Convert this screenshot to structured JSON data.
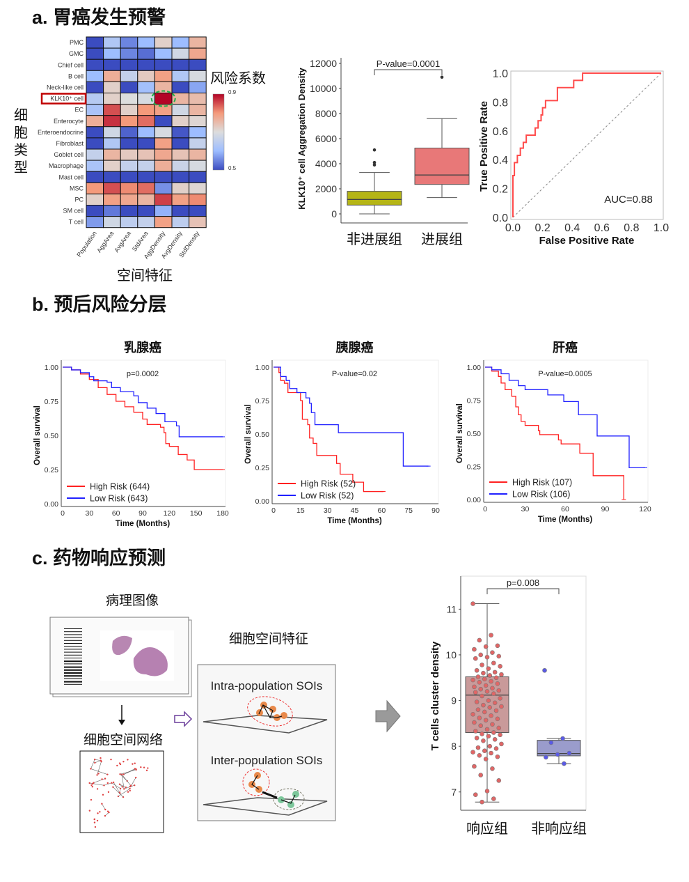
{
  "panel_a": {
    "title": "a. 胃癌发生预警",
    "heatmap_ylabel_chars": [
      "细",
      "胞",
      "类",
      "型"
    ],
    "heatmap_xlabel": "空间特征",
    "colorbar_title": "风险系数",
    "highlight_row_label": "KLK10⁺ cell",
    "highlight_color": "#c00000",
    "highlight_circle_color": "#22b14c"
  },
  "panel_b": {
    "title": "b. 预后风险分层"
  },
  "panel_c": {
    "title": "c. 药物响应预测",
    "pathology_label": "病理图像",
    "network_label": "细胞空间网络",
    "features_label": "细胞空间特征",
    "intra_label": "Intra-population SOIs",
    "inter_label": "Inter-population SOIs"
  },
  "chart_data": [
    {
      "type": "heatmap",
      "rows": [
        "PMC",
        "GMC",
        "Chief cell",
        "B cell",
        "Neck-like cell",
        "KLK10⁺ cell",
        "EC",
        "Enterocyte",
        "Enteroendocrine",
        "Fibroblast",
        "Goblet cell",
        "Macrophage",
        "Mast cell",
        "MSC",
        "PC",
        "SM cell",
        "T cell"
      ],
      "columns": [
        "Population",
        "AggArea",
        "AvgArea",
        "StdArea",
        "AggDensity",
        "AvgDensity",
        "StdDensity"
      ],
      "values": [
        [
          0.5,
          0.63,
          0.55,
          0.6,
          0.72,
          0.6,
          0.76
        ],
        [
          0.5,
          0.6,
          0.55,
          0.53,
          0.6,
          0.68,
          0.78
        ],
        [
          0.5,
          0.5,
          0.5,
          0.5,
          0.5,
          0.5,
          0.5
        ],
        [
          0.6,
          0.77,
          0.66,
          0.73,
          0.79,
          0.63,
          0.69
        ],
        [
          0.5,
          0.72,
          0.5,
          0.61,
          0.76,
          0.5,
          0.58
        ],
        [
          0.64,
          0.72,
          0.7,
          0.69,
          0.9,
          0.76,
          0.75
        ],
        [
          0.62,
          0.85,
          0.72,
          0.8,
          0.79,
          0.68,
          0.76
        ],
        [
          0.77,
          0.87,
          0.8,
          0.83,
          0.5,
          0.72,
          0.71
        ],
        [
          0.5,
          0.68,
          0.52,
          0.6,
          0.69,
          0.51,
          0.6
        ],
        [
          0.5,
          0.63,
          0.5,
          0.5,
          0.79,
          0.5,
          0.66
        ],
        [
          0.66,
          0.76,
          0.73,
          0.74,
          0.78,
          0.74,
          0.76
        ],
        [
          0.62,
          0.72,
          0.66,
          0.66,
          0.77,
          0.67,
          0.69
        ],
        [
          0.5,
          0.5,
          0.5,
          0.5,
          0.5,
          0.5,
          0.5
        ],
        [
          0.8,
          0.85,
          0.81,
          0.83,
          0.56,
          0.72,
          0.71
        ],
        [
          0.72,
          0.79,
          0.78,
          0.76,
          0.86,
          0.79,
          0.81
        ],
        [
          0.5,
          0.54,
          0.5,
          0.5,
          0.59,
          0.5,
          0.5
        ],
        [
          0.57,
          0.68,
          0.65,
          0.66,
          0.79,
          0.65,
          0.74
        ]
      ],
      "colorbar": {
        "min": 0.5,
        "max": 0.9,
        "tick_labels": [
          "0.9",
          "0.5"
        ],
        "colormap": "coolwarm"
      },
      "xlabel": "空间特征"
    },
    {
      "type": "box",
      "ylabel": "KLK10⁺ cell Aggregation Density",
      "ylim": [
        0,
        12000
      ],
      "yticks": [
        0,
        2000,
        4000,
        6000,
        8000,
        10000,
        12000
      ],
      "annotation": "P-value=0.0001",
      "groups": [
        {
          "label": "非进展组",
          "color": "#b5b516",
          "whisker_low": 0,
          "q1": 700,
          "median": 1150,
          "q3": 1800,
          "whisker_high": 3300,
          "outliers": [
            3900,
            4100,
            5100
          ]
        },
        {
          "label": "进展组",
          "color": "#e87878",
          "whisker_low": 1300,
          "q1": 2350,
          "median": 3100,
          "q3": 5250,
          "whisker_high": 7600,
          "outliers": [
            10900
          ]
        }
      ]
    },
    {
      "type": "line",
      "xlabel": "False Positive Rate",
      "ylabel": "True Positive Rate",
      "xlim": [
        0,
        1
      ],
      "ylim": [
        0,
        1
      ],
      "ticks": [
        "0.0",
        "0.2",
        "0.4",
        "0.6",
        "0.8",
        "1.0"
      ],
      "annotation": "AUC=0.88",
      "color": "#ff4b4b",
      "fpr": [
        0,
        0,
        0.01,
        0.01,
        0.03,
        0.03,
        0.05,
        0.05,
        0.07,
        0.07,
        0.09,
        0.09,
        0.15,
        0.15,
        0.17,
        0.17,
        0.19,
        0.19,
        0.2,
        0.2,
        0.22,
        0.22,
        0.3,
        0.3,
        0.41,
        0.41,
        0.47,
        0.47,
        1
      ],
      "tpr": [
        0,
        0.29,
        0.29,
        0.38,
        0.38,
        0.43,
        0.43,
        0.48,
        0.48,
        0.52,
        0.52,
        0.57,
        0.57,
        0.62,
        0.62,
        0.67,
        0.67,
        0.71,
        0.71,
        0.76,
        0.76,
        0.81,
        0.81,
        0.9,
        0.9,
        0.95,
        0.95,
        1,
        1
      ]
    },
    {
      "type": "line",
      "title": "乳腺癌",
      "annotation": "p=0.0002",
      "xlabel": "Time (Months)",
      "ylabel": "Overall survival",
      "xlim": [
        0,
        180
      ],
      "xticks": [
        0,
        30,
        60,
        90,
        120,
        150,
        180
      ],
      "ylim": [
        0,
        1
      ],
      "yticks": [
        "0.00",
        "0.25",
        "0.50",
        "0.75",
        "1.00"
      ],
      "series": [
        {
          "name": "High Risk (644)",
          "color": "#ff2020",
          "points": [
            [
              0,
              1
            ],
            [
              10,
              0.98
            ],
            [
              20,
              0.95
            ],
            [
              30,
              0.91
            ],
            [
              40,
              0.85
            ],
            [
              50,
              0.8
            ],
            [
              60,
              0.75
            ],
            [
              70,
              0.71
            ],
            [
              80,
              0.67
            ],
            [
              90,
              0.62
            ],
            [
              95,
              0.58
            ],
            [
              110,
              0.56
            ],
            [
              114,
              0.52
            ],
            [
              116,
              0.44
            ],
            [
              120,
              0.42
            ],
            [
              130,
              0.36
            ],
            [
              140,
              0.32
            ],
            [
              148,
              0.25
            ],
            [
              180,
              0.25
            ]
          ]
        },
        {
          "name": "Low Risk (643)",
          "color": "#2020ff",
          "points": [
            [
              0,
              1
            ],
            [
              10,
              0.98
            ],
            [
              20,
              0.96
            ],
            [
              30,
              0.93
            ],
            [
              35,
              0.9
            ],
            [
              50,
              0.89
            ],
            [
              55,
              0.85
            ],
            [
              65,
              0.82
            ],
            [
              80,
              0.79
            ],
            [
              85,
              0.74
            ],
            [
              95,
              0.7
            ],
            [
              105,
              0.66
            ],
            [
              115,
              0.6
            ],
            [
              128,
              0.57
            ],
            [
              131,
              0.49
            ],
            [
              180,
              0.49
            ]
          ]
        }
      ]
    },
    {
      "type": "line",
      "title": "胰腺癌",
      "annotation": "P-value=0.02",
      "xlabel": "Time (Months)",
      "ylabel": "Overall survival",
      "xlim": [
        0,
        90
      ],
      "xticks": [
        0,
        15,
        30,
        45,
        60,
        75,
        90
      ],
      "ylim": [
        0,
        1
      ],
      "yticks": [
        "0.00",
        "0.25",
        "0.50",
        "0.75",
        "1.00"
      ],
      "series": [
        {
          "name": "High Risk (52)",
          "color": "#ff2020",
          "points": [
            [
              0,
              1
            ],
            [
              3,
              0.96
            ],
            [
              4,
              0.9
            ],
            [
              6,
              0.88
            ],
            [
              8,
              0.81
            ],
            [
              15,
              0.75
            ],
            [
              16,
              0.61
            ],
            [
              19,
              0.57
            ],
            [
              20,
              0.47
            ],
            [
              22,
              0.43
            ],
            [
              24,
              0.34
            ],
            [
              35,
              0.28
            ],
            [
              37,
              0.2
            ],
            [
              44,
              0.14
            ],
            [
              50,
              0.07
            ],
            [
              61,
              0.07
            ]
          ]
        },
        {
          "name": "Low Risk (52)",
          "color": "#2020ff",
          "points": [
            [
              0,
              1
            ],
            [
              4,
              0.93
            ],
            [
              7,
              0.9
            ],
            [
              9,
              0.84
            ],
            [
              13,
              0.81
            ],
            [
              18,
              0.77
            ],
            [
              20,
              0.73
            ],
            [
              21,
              0.66
            ],
            [
              23,
              0.57
            ],
            [
              36,
              0.51
            ],
            [
              72,
              0.26
            ],
            [
              86,
              0.26
            ]
          ]
        }
      ]
    },
    {
      "type": "line",
      "title": "肝癌",
      "annotation": "P-value=0.0005",
      "xlabel": "Time (Months)",
      "ylabel": "Overall survival",
      "xlim": [
        0,
        120
      ],
      "xticks": [
        0,
        30,
        60,
        90,
        120
      ],
      "ylim": [
        0,
        1
      ],
      "yticks": [
        "0.00",
        "0.25",
        "0.50",
        "0.75",
        "1.00"
      ],
      "series": [
        {
          "name": "High Risk (107)",
          "color": "#ff2020",
          "points": [
            [
              0,
              1
            ],
            [
              5,
              0.97
            ],
            [
              10,
              0.93
            ],
            [
              12,
              0.88
            ],
            [
              15,
              0.83
            ],
            [
              20,
              0.78
            ],
            [
              23,
              0.7
            ],
            [
              25,
              0.64
            ],
            [
              27,
              0.59
            ],
            [
              30,
              0.56
            ],
            [
              40,
              0.52
            ],
            [
              41,
              0.49
            ],
            [
              55,
              0.45
            ],
            [
              57,
              0.42
            ],
            [
              71,
              0.35
            ],
            [
              81,
              0.18
            ],
            [
              104,
              0.18
            ],
            [
              104,
              0
            ]
          ]
        },
        {
          "name": "Low Risk (106)",
          "color": "#2020ff",
          "points": [
            [
              0,
              1
            ],
            [
              5,
              0.98
            ],
            [
              12,
              0.95
            ],
            [
              18,
              0.9
            ],
            [
              25,
              0.86
            ],
            [
              30,
              0.83
            ],
            [
              47,
              0.79
            ],
            [
              59,
              0.74
            ],
            [
              70,
              0.64
            ],
            [
              84,
              0.48
            ],
            [
              108,
              0.24
            ],
            [
              120,
              0.24
            ]
          ]
        }
      ]
    },
    {
      "type": "box",
      "ylabel": "T cells cluster density",
      "ylim": [
        6.6,
        11.6
      ],
      "yticks": [
        7,
        8,
        9,
        10,
        11
      ],
      "annotation": "p=0.008",
      "groups": [
        {
          "label": "响应组",
          "color": "#c99a9a",
          "point_color": "#e06666",
          "whisker_low": 6.78,
          "q1": 8.3,
          "median": 9.12,
          "q3": 9.52,
          "whisker_high": 11.12,
          "points": [
            11.12,
            10.43,
            10.32,
            10.2,
            10.18,
            10.12,
            10.05,
            10.0,
            9.97,
            9.95,
            9.92,
            9.82,
            9.78,
            9.75,
            9.7,
            9.66,
            9.62,
            9.6,
            9.57,
            9.55,
            9.52,
            9.5,
            9.47,
            9.45,
            9.42,
            9.4,
            9.37,
            9.33,
            9.3,
            9.27,
            9.25,
            9.22,
            9.2,
            9.18,
            9.15,
            9.1,
            9.05,
            9.0,
            8.97,
            8.95,
            8.9,
            8.87,
            8.85,
            8.8,
            8.78,
            8.75,
            8.7,
            8.67,
            8.62,
            8.6,
            8.57,
            8.52,
            8.48,
            8.45,
            8.4,
            8.37,
            8.33,
            8.3,
            8.27,
            8.25,
            8.22,
            8.18,
            8.15,
            8.12,
            8.05,
            8.0,
            7.97,
            7.95,
            7.9,
            7.87,
            7.85,
            7.8,
            7.77,
            7.72,
            7.56,
            7.51,
            7.37,
            7.25,
            7.02,
            6.94,
            6.85,
            6.78
          ]
        },
        {
          "label": "非响应组",
          "color": "#9a9ccc",
          "point_color": "#5a5ae6",
          "whisker_low": 7.62,
          "q1": 7.79,
          "median": 7.84,
          "q3": 8.13,
          "whisker_high": 8.17,
          "points": [
            9.66,
            8.17,
            8.08,
            7.85,
            7.82,
            7.76,
            7.62
          ]
        }
      ]
    }
  ]
}
